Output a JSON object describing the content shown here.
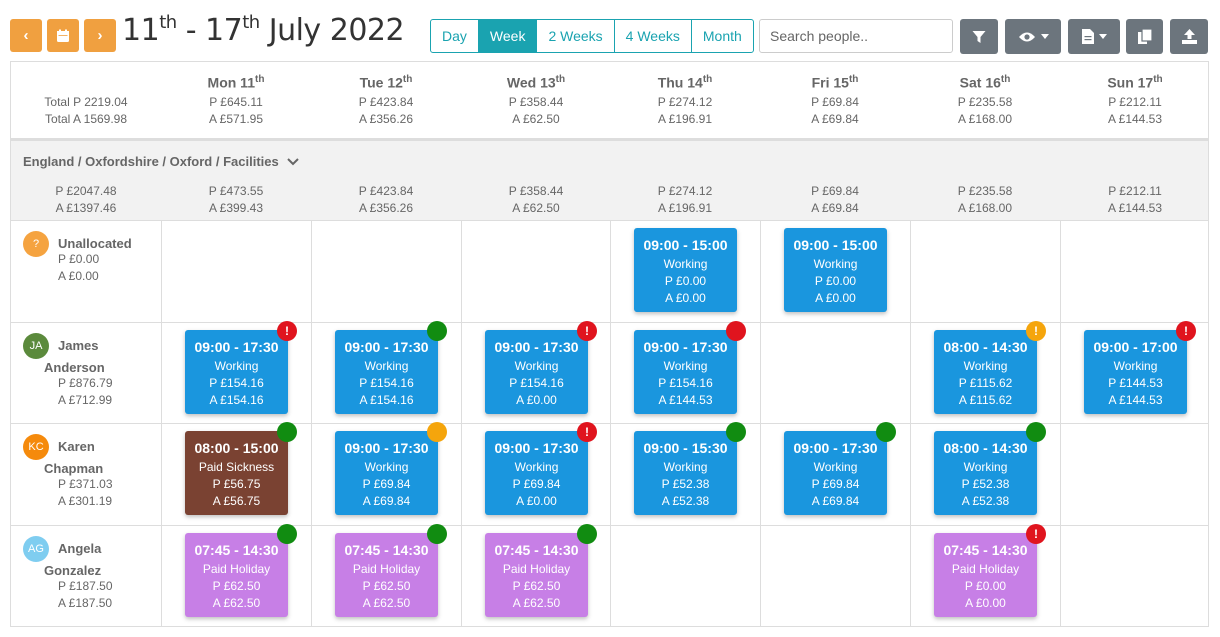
{
  "nav": {
    "prev": "‹",
    "calendar": "calendar-icon",
    "next": "›"
  },
  "title": {
    "start": "11",
    "start_sup": "th",
    "sep": " - 17",
    "end_sup": "th",
    "rest": " July 2022"
  },
  "views": [
    "Day",
    "Week",
    "2 Weeks",
    "4 Weeks",
    "Month"
  ],
  "active_view": "Week",
  "search": {
    "placeholder": "Search people.."
  },
  "days": [
    {
      "name": "Mon 11",
      "sup": "th",
      "p": "P £645.11",
      "a": "A £571.95"
    },
    {
      "name": "Tue 12",
      "sup": "th",
      "p": "P £423.84",
      "a": "A £356.26"
    },
    {
      "name": "Wed 13",
      "sup": "th",
      "p": "P £358.44",
      "a": "A £62.50"
    },
    {
      "name": "Thu 14",
      "sup": "th",
      "p": "P £274.12",
      "a": "A £196.91"
    },
    {
      "name": "Fri 15",
      "sup": "th",
      "p": "P £69.84",
      "a": "A £69.84"
    },
    {
      "name": "Sat 16",
      "sup": "th",
      "p": "P £235.58",
      "a": "A £168.00"
    },
    {
      "name": "Sun 17",
      "sup": "th",
      "p": "P £212.11",
      "a": "A £144.53"
    }
  ],
  "totals": {
    "p": "Total P 2219.04",
    "a": "Total A 1569.98"
  },
  "section": {
    "title": "England / Oxfordshire / Oxford / Facilities",
    "p": "P £2047.48",
    "a": "A £1397.46",
    "days": [
      {
        "p": "P £473.55",
        "a": "A £399.43"
      },
      {
        "p": "P £423.84",
        "a": "A £356.26"
      },
      {
        "p": "P £358.44",
        "a": "A £62.50"
      },
      {
        "p": "P £274.12",
        "a": "A £196.91"
      },
      {
        "p": "P £69.84",
        "a": "A £69.84"
      },
      {
        "p": "P £235.58",
        "a": "A £168.00"
      },
      {
        "p": "P £212.11",
        "a": "A £144.53"
      }
    ]
  },
  "colors": {
    "working": "#1a96de",
    "sickness": "#7a4232",
    "holiday": "#c77fe6",
    "ok": "#118c11",
    "error": "#e0141e",
    "warning": "#f5a50c"
  },
  "people": [
    {
      "initials": "?",
      "name1": "Unallocated",
      "name2": "",
      "p": "P £0.00",
      "a": "A £0.00",
      "avatar_color": "#f5a340",
      "shifts": [
        null,
        null,
        null,
        {
          "time": "09:00 - 15:00",
          "type": "Working",
          "p": "P £0.00",
          "a": "A £0.00",
          "kind": "working",
          "status": null
        },
        {
          "time": "09:00 - 15:00",
          "type": "Working",
          "p": "P £0.00",
          "a": "A £0.00",
          "kind": "working",
          "status": null
        },
        null,
        null
      ]
    },
    {
      "initials": "JA",
      "name1": "James",
      "name2": "Anderson",
      "p": "P £876.79",
      "a": "A £712.99",
      "avatar_color": "#5b8a3c",
      "shifts": [
        {
          "time": "09:00 - 17:30",
          "type": "Working",
          "p": "P £154.16",
          "a": "A £154.16",
          "kind": "working",
          "status": "error"
        },
        {
          "time": "09:00 - 17:30",
          "type": "Working",
          "p": "P £154.16",
          "a": "A £154.16",
          "kind": "working",
          "status": "ok"
        },
        {
          "time": "09:00 - 17:30",
          "type": "Working",
          "p": "P £154.16",
          "a": "A £0.00",
          "kind": "working",
          "status": "error"
        },
        {
          "time": "09:00 - 17:30",
          "type": "Working",
          "p": "P £154.16",
          "a": "A £144.53",
          "kind": "working",
          "status": "red"
        },
        null,
        {
          "time": "08:00 - 14:30",
          "type": "Working",
          "p": "P £115.62",
          "a": "A £115.62",
          "kind": "working",
          "status": "warning"
        },
        {
          "time": "09:00 - 17:00",
          "type": "Working",
          "p": "P £144.53",
          "a": "A £144.53",
          "kind": "working",
          "status": "error"
        }
      ]
    },
    {
      "initials": "KC",
      "name1": "Karen",
      "name2": "Chapman",
      "p": "P £371.03",
      "a": "A £301.19",
      "avatar_color": "#f58a0c",
      "shifts": [
        {
          "time": "08:00 - 15:00",
          "type": "Paid Sickness",
          "p": "P £56.75",
          "a": "A £56.75",
          "kind": "sickness",
          "status": "ok"
        },
        {
          "time": "09:00 - 17:30",
          "type": "Working",
          "p": "P £69.84",
          "a": "A £69.84",
          "kind": "working",
          "status": "orange"
        },
        {
          "time": "09:00 - 17:30",
          "type": "Working",
          "p": "P £69.84",
          "a": "A £0.00",
          "kind": "working",
          "status": "error"
        },
        {
          "time": "09:00 - 15:30",
          "type": "Working",
          "p": "P £52.38",
          "a": "A £52.38",
          "kind": "working",
          "status": "ok"
        },
        {
          "time": "09:00 - 17:30",
          "type": "Working",
          "p": "P £69.84",
          "a": "A £69.84",
          "kind": "working",
          "status": "ok"
        },
        {
          "time": "08:00 - 14:30",
          "type": "Working",
          "p": "P £52.38",
          "a": "A £52.38",
          "kind": "working",
          "status": "ok"
        },
        null
      ]
    },
    {
      "initials": "AG",
      "name1": "Angela",
      "name2": "Gonzalez",
      "p": "P £187.50",
      "a": "A £187.50",
      "avatar_color": "#7fcdf0",
      "shifts": [
        {
          "time": "07:45 - 14:30",
          "type": "Paid Holiday",
          "p": "P £62.50",
          "a": "A £62.50",
          "kind": "holiday",
          "status": "ok"
        },
        {
          "time": "07:45 - 14:30",
          "type": "Paid Holiday",
          "p": "P £62.50",
          "a": "A £62.50",
          "kind": "holiday",
          "status": "ok"
        },
        {
          "time": "07:45 - 14:30",
          "type": "Paid Holiday",
          "p": "P £62.50",
          "a": "A £62.50",
          "kind": "holiday",
          "status": "ok"
        },
        null,
        null,
        {
          "time": "07:45 - 14:30",
          "type": "Paid Holiday",
          "p": "P £0.00",
          "a": "A £0.00",
          "kind": "holiday",
          "status": "error"
        },
        null
      ]
    }
  ]
}
